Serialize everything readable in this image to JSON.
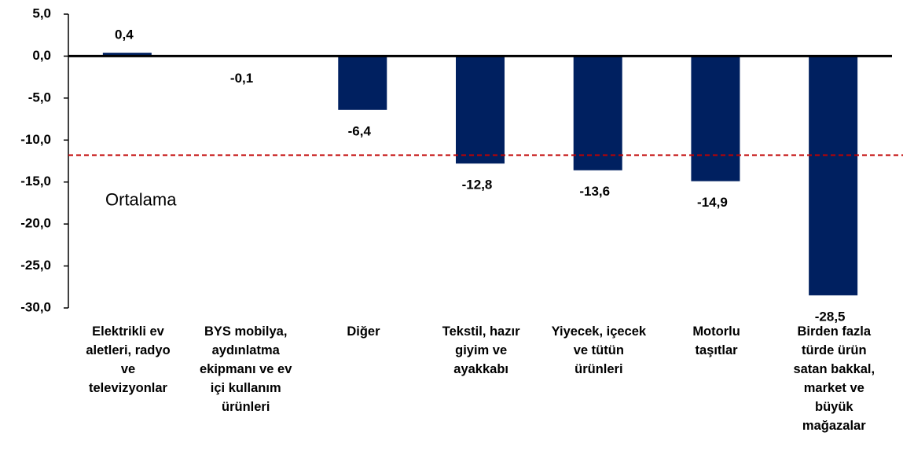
{
  "chart_data": {
    "type": "bar",
    "categories": [
      "Elektrikli ev\naletleri, radyo\nve\ntelevizyonlar",
      "BYS mobilya,\naydınlatma\nekipmanı ve ev\niçi kullanım\nürünleri",
      "Diğer",
      "Tekstil, hazır\ngiyim ve\nayakkabı",
      "Yiyecek, içecek\nve tütün\nürünleri",
      "Motorlu\ntaşıtlar",
      "Birden fazla\ntürde ürün\nsatan bakkal,\nmarket ve\nbüyük\nmağazalar"
    ],
    "values": [
      0.4,
      -0.1,
      -6.4,
      -12.8,
      -13.6,
      -14.9,
      -28.5
    ],
    "value_labels": [
      "0,4",
      "-0,1",
      "-6,4",
      "-12,8",
      "-13,6",
      "-14,9",
      "-28,5"
    ],
    "color": "#002060",
    "ylim": [
      -30,
      5
    ],
    "yticks": [
      {
        "value": -30,
        "label": "-30,0"
      },
      {
        "value": -25,
        "label": "-25,0"
      },
      {
        "value": -20,
        "label": "-20,0"
      },
      {
        "value": -15,
        "label": "-15,0"
      },
      {
        "value": -10,
        "label": "-10,0"
      },
      {
        "value": -5,
        "label": "-5,0"
      },
      {
        "value": 0,
        "label": "0,0"
      },
      {
        "value": 5,
        "label": "5,0"
      }
    ],
    "grid": false,
    "reference_line": {
      "value": -11.8,
      "label": "Ortalama",
      "color": "#c00000"
    }
  }
}
